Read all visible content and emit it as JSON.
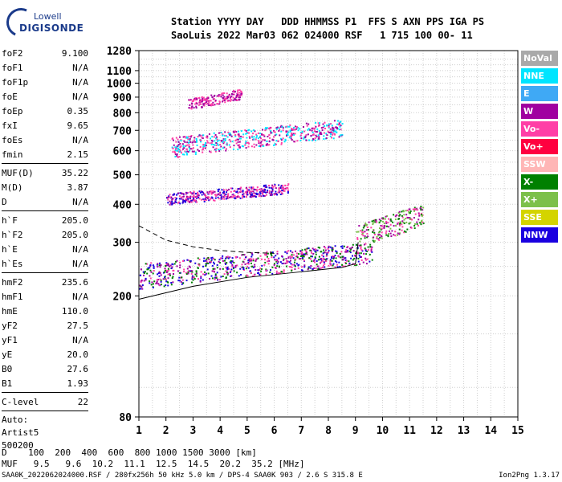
{
  "logo": {
    "line1": "Lowell",
    "line2": "DIGISONDE"
  },
  "header": {
    "line1": "Station YYYY DAY   DDD HHMMSS P1  FFS S AXN PPS IGA PS",
    "line2": "SaoLuis 2022 Mar03 062 024000 RSF   1 715 100 00- 11"
  },
  "params": [
    {
      "label": "foF2",
      "value": "9.100"
    },
    {
      "label": "foF1",
      "value": "N/A"
    },
    {
      "label": "foF1p",
      "value": "N/A"
    },
    {
      "label": "foE",
      "value": "N/A"
    },
    {
      "label": "foEp",
      "value": "0.35"
    },
    {
      "label": "fxI",
      "value": "9.65"
    },
    {
      "label": "foEs",
      "value": "N/A"
    },
    {
      "label": "fmin",
      "value": "2.15"
    },
    {
      "sep": true
    },
    {
      "label": "MUF(D)",
      "value": "35.22"
    },
    {
      "label": "M(D)",
      "value": "3.87"
    },
    {
      "label": "D",
      "value": "N/A"
    },
    {
      "sep": true
    },
    {
      "label": "h`F",
      "value": "205.0"
    },
    {
      "label": "h`F2",
      "value": "205.0"
    },
    {
      "label": "h`E",
      "value": "N/A"
    },
    {
      "label": "h`Es",
      "value": "N/A"
    },
    {
      "sep": true
    },
    {
      "label": "hmF2",
      "value": "235.6"
    },
    {
      "label": "hmF1",
      "value": "N/A"
    },
    {
      "label": "hmE",
      "value": "110.0"
    },
    {
      "label": "yF2",
      "value": "27.5"
    },
    {
      "label": "yF1",
      "value": "N/A"
    },
    {
      "label": "yE",
      "value": "20.0"
    },
    {
      "label": "B0",
      "value": "27.6"
    },
    {
      "label": "B1",
      "value": "1.93"
    },
    {
      "sep": true
    },
    {
      "label": "C-level",
      "value": "22"
    },
    {
      "sep": true
    }
  ],
  "auto": {
    "line1": "Auto:",
    "line2": "Artist5",
    "line3": "500200"
  },
  "legend": [
    {
      "label": "NoVal",
      "color": "#a9a9a9"
    },
    {
      "label": "NNE",
      "color": "#00e5ff"
    },
    {
      "label": "E",
      "color": "#3fa9f5"
    },
    {
      "label": "W",
      "color": "#a000a0"
    },
    {
      "label": "Vo-",
      "color": "#ff3fa6"
    },
    {
      "label": "Vo+",
      "color": "#ff0040"
    },
    {
      "label": "SSW",
      "color": "#ffb6b6"
    },
    {
      "label": "X-",
      "color": "#008000"
    },
    {
      "label": "X+",
      "color": "#7cc04a"
    },
    {
      "label": "SSE",
      "color": "#d4d400"
    },
    {
      "label": "NNW",
      "color": "#1a00e0"
    }
  ],
  "chart_data": {
    "type": "scatter",
    "xlabel": "",
    "ylabel": "",
    "xlim": [
      1,
      15
    ],
    "ylim": [
      80,
      1280
    ],
    "y_scale": "log",
    "x_ticks": [
      1,
      2,
      3,
      4,
      5,
      6,
      7,
      8,
      9,
      10,
      11,
      12,
      13,
      14,
      15
    ],
    "y_ticks": [
      80,
      200,
      300,
      400,
      500,
      600,
      700,
      800,
      900,
      1000,
      1100,
      1280
    ],
    "grid": true,
    "echo_bands": [
      {
        "x_start": 1.0,
        "x_end": 9.6,
        "h_start": 225,
        "h_end": 300,
        "dominant": [
          "NNW",
          "W",
          "Vo-",
          "X-"
        ]
      },
      {
        "x_start": 9.0,
        "x_end": 11.5,
        "h_start": 300,
        "h_end": 400,
        "dominant": [
          "W",
          "Vo-",
          "X-",
          "X+"
        ]
      },
      {
        "x_start": 2.0,
        "x_end": 6.5,
        "h_start": 410,
        "h_end": 470,
        "dominant": [
          "NNW",
          "W",
          "Vo-"
        ]
      },
      {
        "x_start": 2.2,
        "x_end": 8.5,
        "h_start": 600,
        "h_end": 760,
        "dominant": [
          "W",
          "Vo-",
          "NNE"
        ]
      },
      {
        "x_start": 2.8,
        "x_end": 4.8,
        "h_start": 840,
        "h_end": 960,
        "dominant": [
          "W",
          "Vo-"
        ]
      }
    ],
    "trace_lines": [
      {
        "style": "dashed",
        "points": [
          [
            1.0,
            340
          ],
          [
            2.0,
            305
          ],
          [
            3.0,
            290
          ],
          [
            4.0,
            282
          ],
          [
            5.0,
            278
          ],
          [
            6.0,
            276
          ]
        ]
      },
      {
        "style": "solid",
        "points": [
          [
            1.0,
            195
          ],
          [
            3.0,
            215
          ],
          [
            5.0,
            230
          ],
          [
            7.0,
            240
          ],
          [
            8.5,
            248
          ],
          [
            9.0,
            255
          ],
          [
            9.1,
            300
          ]
        ]
      }
    ],
    "footer": {
      "d_label": "D",
      "d_values": [
        "100",
        "200",
        "400",
        "600",
        "800",
        "1000",
        "1500",
        "3000"
      ],
      "d_unit": "[km]",
      "muf_label": "MUF",
      "muf_values": [
        "9.5",
        "9.6",
        "10.2",
        "11.1",
        "12.5",
        "14.5",
        "20.2",
        "35.2"
      ],
      "muf_unit": "[MHz]"
    }
  },
  "footnote": "SAA0K_2022062024000.RSF / 280fx256h 50 kHz 5.0 km / DPS-4 SAA0K 903 / 2.6 S 315.8 E",
  "version": "Ion2Png 1.3.17"
}
